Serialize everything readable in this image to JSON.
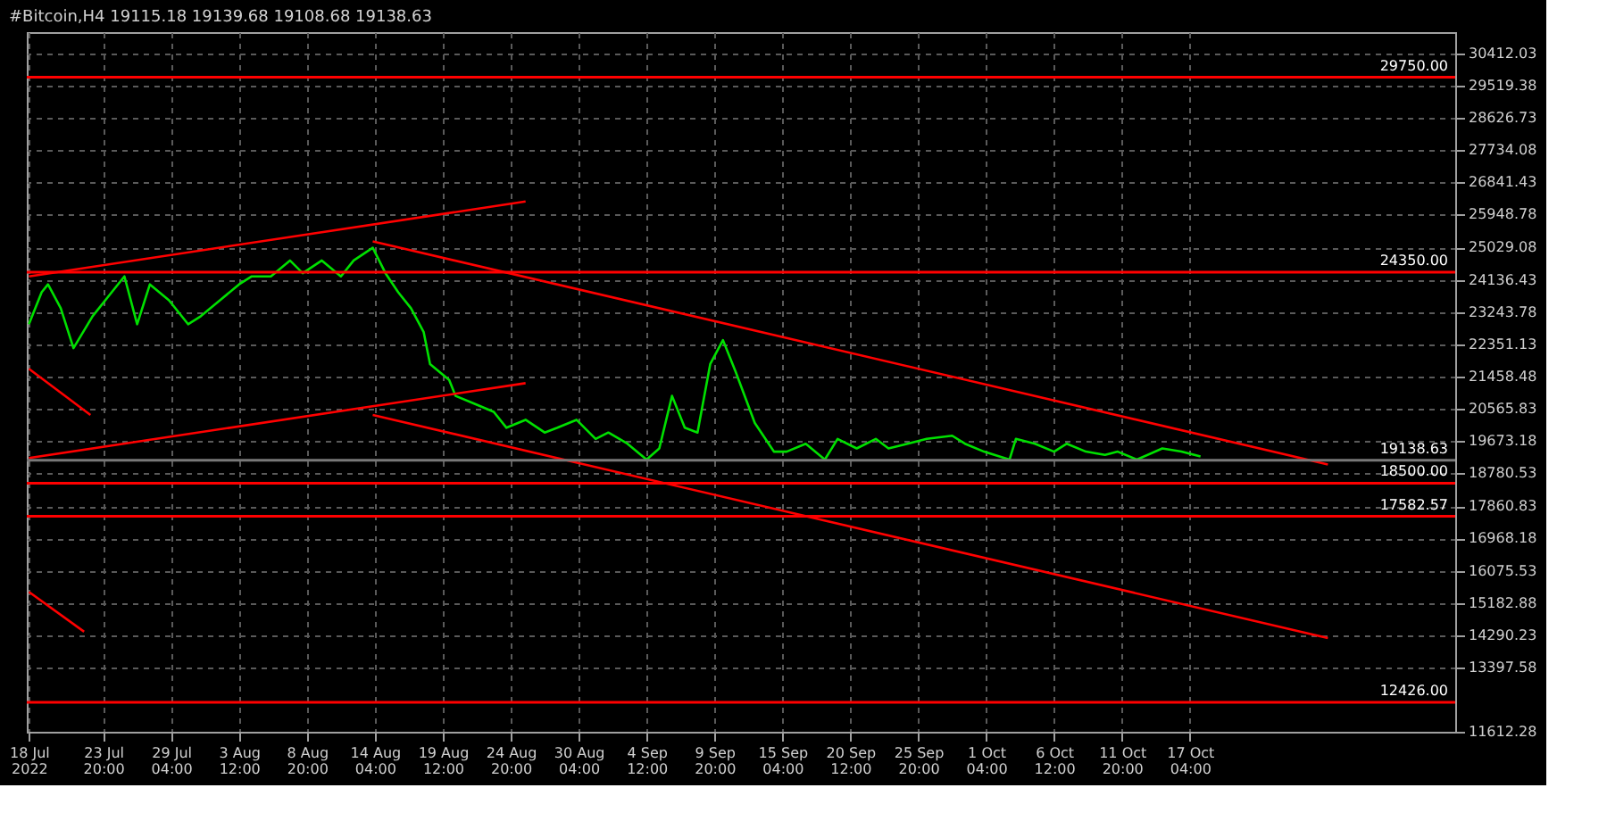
{
  "chart_data": {
    "type": "line",
    "title": "#Bitcoin,H4  19115.18 19139.68 19108.68 19138.63",
    "xlim": [
      "2022-07-17T20:00",
      "2022-11-07T00:00"
    ],
    "xticks": [
      {
        "value": "2022-07-18T00:00",
        "label": "18 Jul 2022"
      },
      {
        "value": "2022-07-23T20:00",
        "label": "23 Jul 20:00"
      },
      {
        "value": "2022-07-29T04:00",
        "label": "29 Jul 04:00"
      },
      {
        "value": "2022-08-03T12:00",
        "label": "3 Aug 12:00"
      },
      {
        "value": "2022-08-08T20:00",
        "label": "8 Aug 20:00"
      },
      {
        "value": "2022-08-14T04:00",
        "label": "14 Aug 04:00"
      },
      {
        "value": "2022-08-19T12:00",
        "label": "19 Aug 12:00"
      },
      {
        "value": "2022-08-24T20:00",
        "label": "24 Aug 20:00"
      },
      {
        "value": "2022-08-30T04:00",
        "label": "30 Aug 04:00"
      },
      {
        "value": "2022-09-04T12:00",
        "label": "4 Sep 12:00"
      },
      {
        "value": "2022-09-09T20:00",
        "label": "9 Sep 20:00"
      },
      {
        "value": "2022-09-15T04:00",
        "label": "15 Sep 04:00"
      },
      {
        "value": "2022-09-20T12:00",
        "label": "20 Sep 12:00"
      },
      {
        "value": "2022-09-25T20:00",
        "label": "25 Sep 20:00"
      },
      {
        "value": "2022-10-01T04:00",
        "label": "1 Oct 04:00"
      },
      {
        "value": "2022-10-06T12:00",
        "label": "6 Oct 12:00"
      },
      {
        "value": "2022-10-11T20:00",
        "label": "11 Oct 20:00"
      },
      {
        "value": "2022-10-17T04:00",
        "label": "17 Oct 04:00"
      }
    ],
    "ylim": [
      11612.28,
      31000
    ],
    "yticks": [
      11612.28,
      13397.58,
      14290.23,
      15182.88,
      16075.53,
      16968.18,
      17860.83,
      18780.53,
      19673.18,
      20565.83,
      21458.48,
      22351.13,
      23243.78,
      24136.43,
      25029.08,
      25948.78,
      26841.43,
      27734.08,
      28626.73,
      29519.38,
      30412.03
    ],
    "grid": true,
    "line_style": "solid",
    "series": [
      {
        "color": "#00e000",
        "x": [
          "2022-07-18T00:00",
          "2022-07-19T00:00",
          "2022-07-19T12:00",
          "2022-07-20T12:00",
          "2022-07-21T12:00",
          "2022-07-23T00:00",
          "2022-07-24T12:00",
          "2022-07-25T12:00",
          "2022-07-26T12:00",
          "2022-07-27T12:00",
          "2022-07-29T00:00",
          "2022-07-30T12:00",
          "2022-07-31T12:00",
          "2022-08-02T00:00",
          "2022-08-03T12:00",
          "2022-08-04T12:00",
          "2022-08-06T00:00",
          "2022-08-07T12:00",
          "2022-08-08T12:00",
          "2022-08-10T00:00",
          "2022-08-11T12:00",
          "2022-08-12T12:00",
          "2022-08-14T00:00",
          "2022-08-15T00:00",
          "2022-08-16T00:00",
          "2022-08-17T00:00",
          "2022-08-18T00:00",
          "2022-08-18T12:00",
          "2022-08-20T00:00",
          "2022-08-20T12:00",
          "2022-08-22T00:00",
          "2022-08-23T12:00",
          "2022-08-24T12:00",
          "2022-08-26T00:00",
          "2022-08-27T12:00",
          "2022-08-28T12:00",
          "2022-08-30T00:00",
          "2022-08-31T12:00",
          "2022-09-01T12:00",
          "2022-09-03T00:00",
          "2022-09-04T12:00",
          "2022-09-05T12:00",
          "2022-09-06T12:00",
          "2022-09-07T12:00",
          "2022-09-08T12:00",
          "2022-09-09T12:00",
          "2022-09-10T12:00",
          "2022-09-11T12:00",
          "2022-09-13T00:00",
          "2022-09-14T12:00",
          "2022-09-15T12:00",
          "2022-09-17T00:00",
          "2022-09-18T12:00",
          "2022-09-19T12:00",
          "2022-09-21T00:00",
          "2022-09-22T12:00",
          "2022-09-23T12:00",
          "2022-09-25T00:00",
          "2022-09-26T12:00",
          "2022-09-28T12:00",
          "2022-09-29T12:00",
          "2022-10-01T00:00",
          "2022-10-03T00:00",
          "2022-10-03T12:00",
          "2022-10-05T00:00",
          "2022-10-06T12:00",
          "2022-10-07T12:00",
          "2022-10-09T00:00",
          "2022-10-10T12:00",
          "2022-10-11T12:00",
          "2022-10-13T00:00",
          "2022-10-15T00:00",
          "2022-10-16T12:00",
          "2022-10-18T00:00"
        ],
        "values": [
          22906,
          23790,
          24010,
          23348,
          22244,
          23127,
          23790,
          24231,
          22906,
          24010,
          23569,
          22906,
          23127,
          23569,
          24010,
          24231,
          24231,
          24672,
          24319,
          24672,
          24231,
          24672,
          25026,
          24319,
          23790,
          23348,
          22686,
          21803,
          21361,
          20920,
          20699,
          20478,
          20037,
          20257,
          19904,
          20037,
          20257,
          19728,
          19904,
          19595,
          19154,
          19463,
          20920,
          20037,
          19904,
          21803,
          22465,
          21582,
          20169,
          19375,
          19375,
          19595,
          19154,
          19728,
          19463,
          19728,
          19463,
          19595,
          19728,
          19816,
          19595,
          19375,
          19154,
          19728,
          19595,
          19375,
          19595,
          19375,
          19286,
          19375,
          19154,
          19463,
          19375,
          19242
        ]
      },
      {
        "color": "#ff0000",
        "x": [
          "2022-07-18T00:00",
          "2022-08-26T00:00"
        ],
        "values": [
          24231,
          26306
        ]
      },
      {
        "color": "#ff0000",
        "x": [
          "2022-07-18T00:00",
          "2022-08-26T00:00"
        ],
        "values": [
          19198,
          21273
        ]
      },
      {
        "color": "#ff0000",
        "x": [
          "2022-08-14T00:00",
          "2022-10-28T00:00"
        ],
        "values": [
          25202,
          19021
        ]
      },
      {
        "color": "#ff0000",
        "x": [
          "2022-08-14T00:00",
          "2022-10-28T00:00"
        ],
        "values": [
          20390,
          14209
        ]
      },
      {
        "color": "#ff0000",
        "x": [
          "2022-07-18T00:00",
          "2022-07-22T20:00"
        ],
        "values": [
          21670,
          20390
        ]
      },
      {
        "color": "#ff0000",
        "x": [
          "2022-07-18T00:00",
          "2022-07-22T08:00"
        ],
        "values": [
          15490,
          14386
        ]
      }
    ],
    "ref_lines": [
      {
        "axis": "y",
        "value": 29750,
        "label": "29750.00",
        "color": "#ff0000"
      },
      {
        "axis": "y",
        "value": 24350,
        "label": "24350.00",
        "color": "#ff0000"
      },
      {
        "axis": "y",
        "value": 19138.63,
        "label": "19138.63",
        "color": "#787878"
      },
      {
        "axis": "y",
        "value": 18500,
        "label": "18500.00",
        "color": "#ff0000"
      },
      {
        "axis": "y",
        "value": 17582.57,
        "label": "17582.57",
        "color": "#ff0000"
      },
      {
        "axis": "y",
        "value": 12426,
        "label": "12426.00",
        "color": "#ff0000"
      }
    ]
  }
}
